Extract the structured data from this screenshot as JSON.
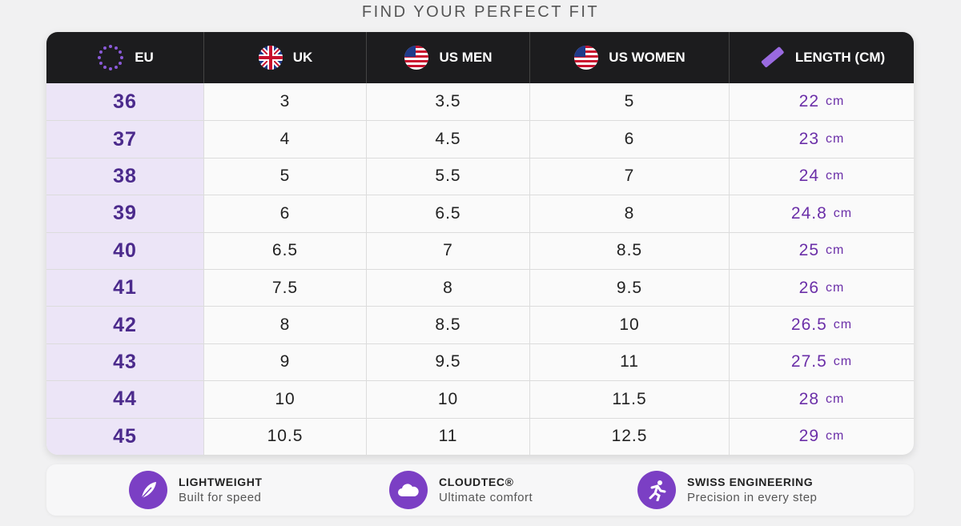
{
  "header": {
    "title": "FIND YOUR PERFECT FIT"
  },
  "table": {
    "columns": [
      "EU",
      "UK",
      "US MEN",
      "US WOMEN",
      "LENGTH (CM)"
    ],
    "unit": "cm",
    "rows": [
      [
        "36",
        "3",
        "3.5",
        "5",
        "22"
      ],
      [
        "37",
        "4",
        "4.5",
        "6",
        "23"
      ],
      [
        "38",
        "5",
        "5.5",
        "7",
        "24"
      ],
      [
        "39",
        "6",
        "6.5",
        "8",
        "24.8"
      ],
      [
        "40",
        "6.5",
        "7",
        "8.5",
        "25"
      ],
      [
        "41",
        "7.5",
        "8",
        "9.5",
        "26"
      ],
      [
        "42",
        "8",
        "8.5",
        "10",
        "26.5"
      ],
      [
        "43",
        "9",
        "9.5",
        "11",
        "27.5"
      ],
      [
        "44",
        "10",
        "10",
        "11.5",
        "28"
      ],
      [
        "45",
        "10.5",
        "11",
        "12.5",
        "29"
      ]
    ]
  },
  "features": [
    {
      "title": "LIGHTWEIGHT",
      "subtitle": "Built for speed"
    },
    {
      "title": "CLOUDTEC®",
      "subtitle": "Ultimate comfort"
    },
    {
      "title": "SWISS ENGINEERING",
      "subtitle": "Precision in every step"
    }
  ]
}
